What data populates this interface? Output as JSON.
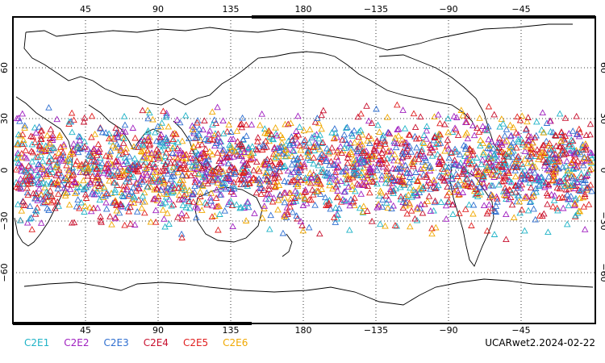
{
  "map": {
    "lon_labels": [
      "45",
      "90",
      "135",
      "180",
      "−135",
      "−90",
      "−45"
    ],
    "lat_labels": [
      "60",
      "30",
      "0",
      "−30",
      "−60"
    ],
    "frame_color": "#000000",
    "grid_style": "dotted",
    "marker_shape": "open-triangle",
    "lat_coverage": [
      -45,
      45
    ]
  },
  "legend": [
    {
      "label": "C2E1",
      "color": "#1fb3c7"
    },
    {
      "label": "C2E2",
      "color": "#a020c0"
    },
    {
      "label": "C2E3",
      "color": "#2f6fd0"
    },
    {
      "label": "C2E4",
      "color": "#c8102e"
    },
    {
      "label": "C2E5",
      "color": "#e02020"
    },
    {
      "label": "C2E6",
      "color": "#f0a800"
    }
  ],
  "footer": {
    "title": "UCARwet2.2024-02-22"
  }
}
